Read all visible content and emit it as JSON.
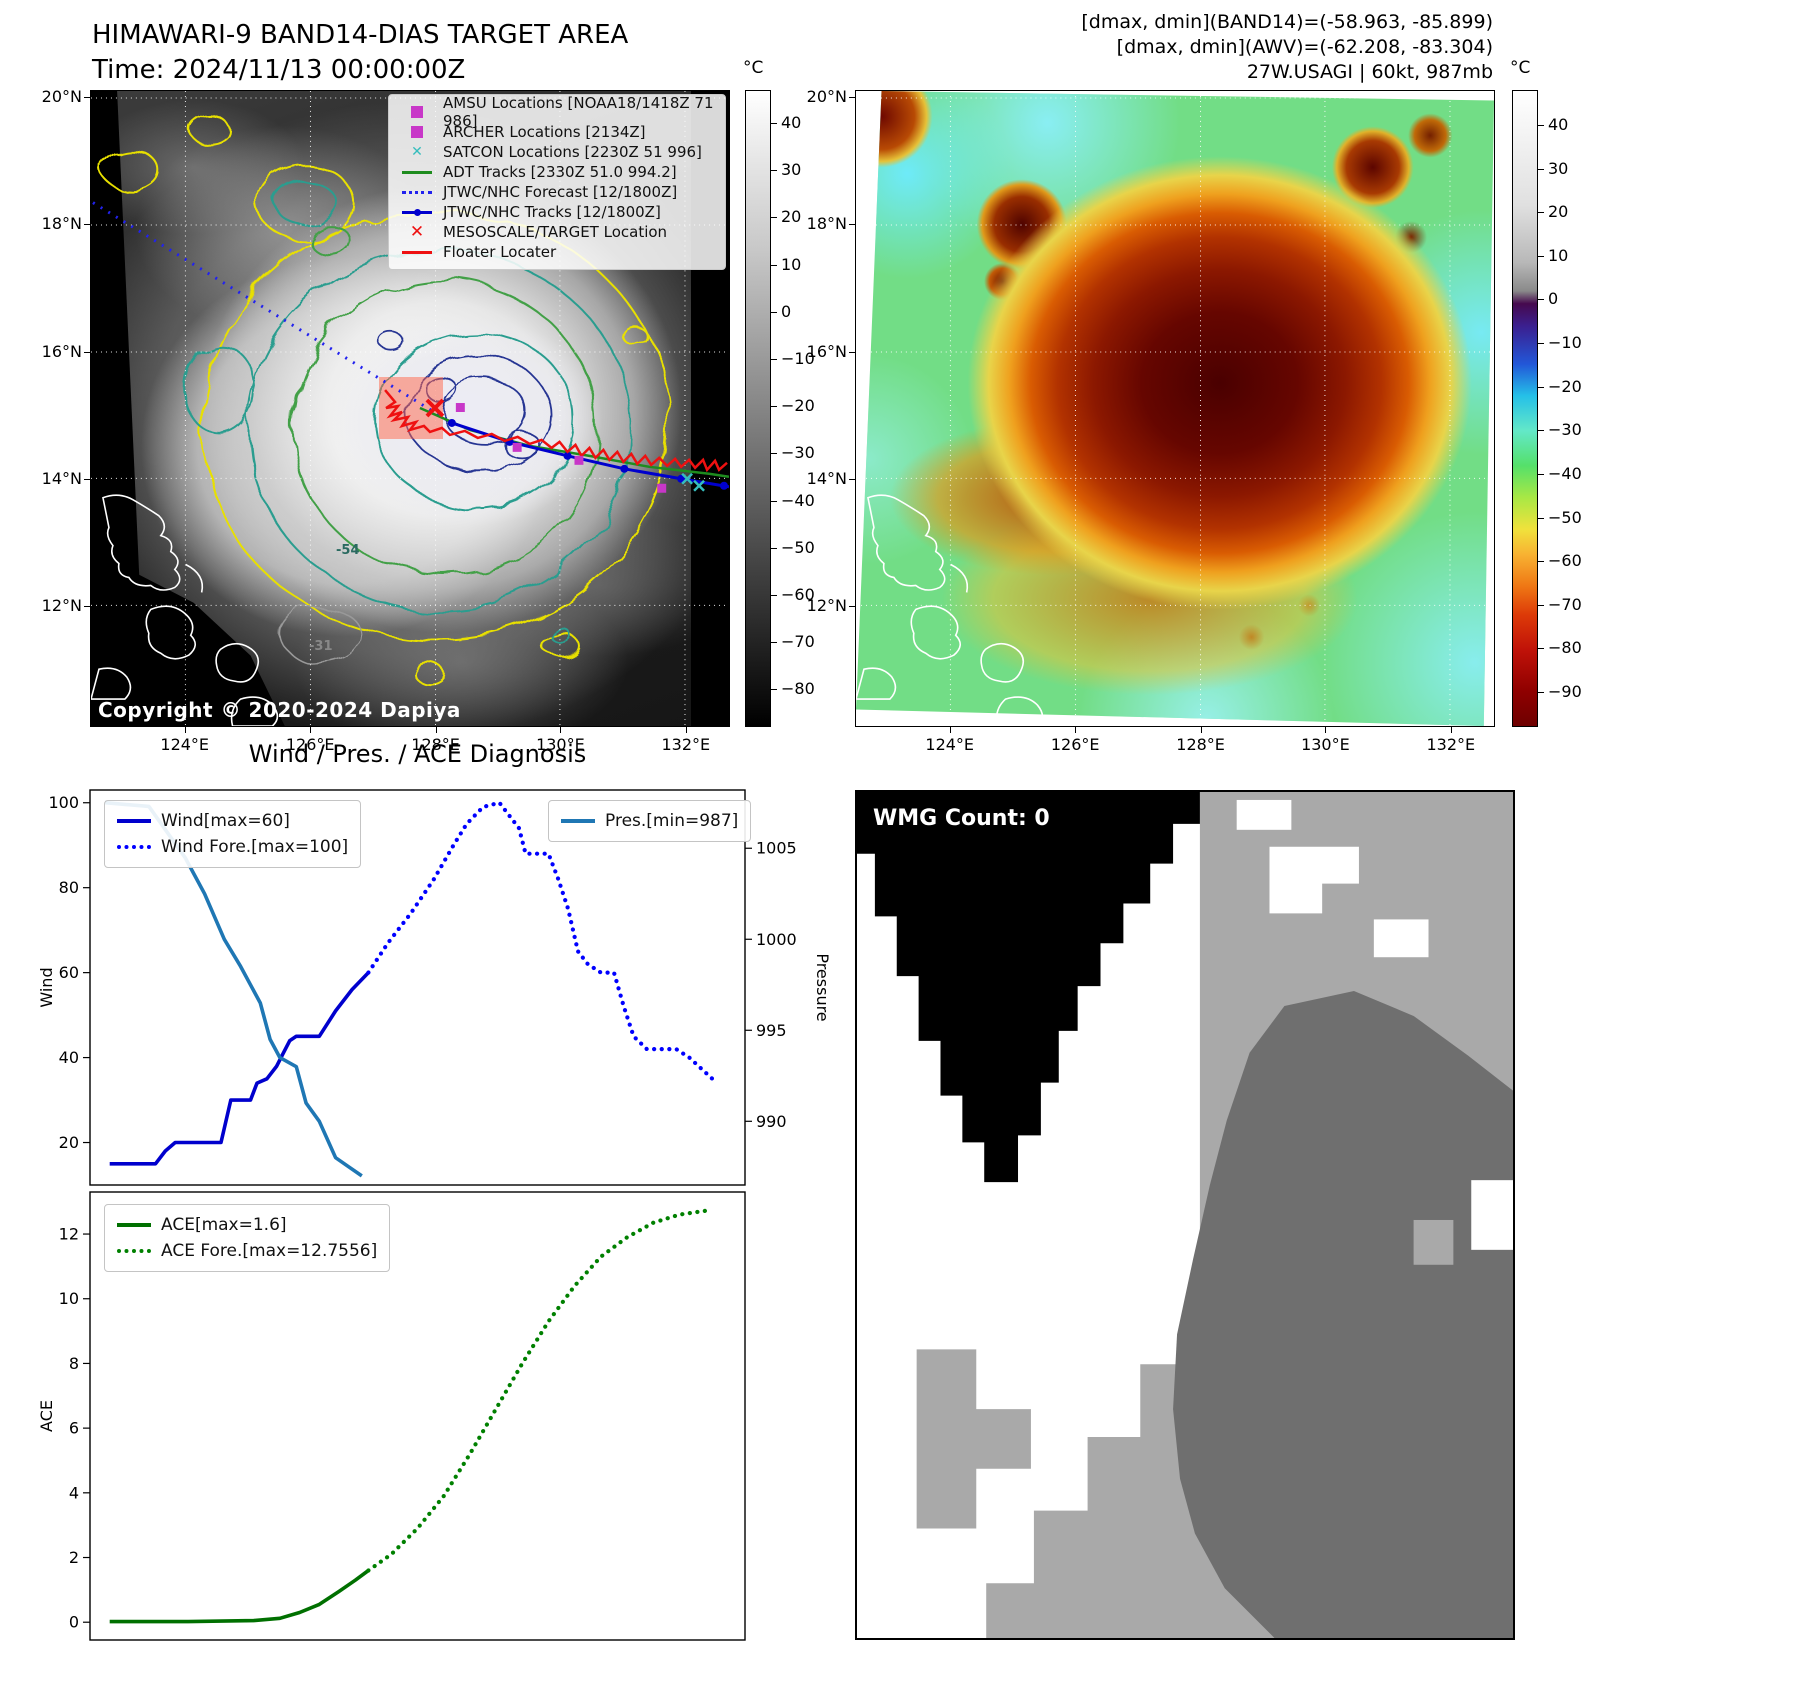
{
  "panel_band14": {
    "title_line1": "HIMAWARI-9 BAND14-DIAS TARGET AREA",
    "title_line2": "Time: 2024/11/13 00:00:00Z",
    "copyright": "Copyright © 2020-2024 Dapiya",
    "colorbar": {
      "unit": "°C",
      "ticks": [
        40,
        30,
        20,
        10,
        0,
        -10,
        -20,
        -30,
        -40,
        -50,
        -60,
        -70,
        -80
      ]
    },
    "x_ticks": [
      "124°E",
      "126°E",
      "128°E",
      "130°E",
      "132°E"
    ],
    "y_ticks": [
      "20°N",
      "18°N",
      "16°N",
      "14°N",
      "12°N"
    ],
    "contour_labels": [
      "-54",
      "-31"
    ],
    "legend": [
      {
        "label": "AMSU Locations [NOAA18/1418Z 71 986]",
        "marker": "square",
        "color": "#c837c8"
      },
      {
        "label": "ARCHER Locations [2134Z]",
        "marker": "square",
        "color": "#c837c8"
      },
      {
        "label": "SATCON Locations [2230Z 51 996]",
        "marker": "x",
        "color": "#35bdbd"
      },
      {
        "label": "ADT Tracks [2330Z 51.0 994.2]",
        "marker": "line",
        "color": "#1e8c1e"
      },
      {
        "label": "JTWC/NHC Forecast [12/1800Z]",
        "marker": "dotted",
        "color": "#2222ee"
      },
      {
        "label": "JTWC/NHC Tracks [12/1800Z]",
        "marker": "line-dot",
        "color": "#0000cd"
      },
      {
        "label": "MESOSCALE/TARGET Location",
        "marker": "x-bold",
        "color": "#ee1111"
      },
      {
        "label": "Floater Locater",
        "marker": "line",
        "color": "#ee1111"
      }
    ]
  },
  "panel_awv": {
    "header_line1": "[dmax, dmin](BAND14)=(-58.963, -85.899)",
    "header_line2": "[dmax, dmin](AWV)=(-62.208, -83.304)",
    "header_line3": "27W.USAGI | 60kt, 987mb",
    "colorbar": {
      "unit": "°C",
      "ticks": [
        40,
        30,
        20,
        10,
        0,
        -10,
        -20,
        -30,
        -40,
        -50,
        -60,
        -70,
        -80,
        -90
      ]
    },
    "x_ticks": [
      "124°E",
      "126°E",
      "128°E",
      "130°E",
      "132°E"
    ],
    "y_ticks": [
      "20°N",
      "18°N",
      "16°N",
      "14°N",
      "12°N"
    ]
  },
  "diagnosis_title": "Wind / Pres. / ACE Diagnosis",
  "wmg": {
    "label": "WMG Count: 0"
  },
  "chart_data": [
    {
      "type": "line",
      "title": "Wind / Pres. / ACE Diagnosis",
      "ylabel_left": "Wind",
      "ylabel_right": "Pressure",
      "ylim_left": [
        10,
        103
      ],
      "ylim_right": [
        986.5,
        1008.2
      ],
      "yticks_left": [
        20,
        40,
        60,
        80,
        100
      ],
      "yticks_right": [
        990,
        995,
        1000,
        1005
      ],
      "xlim": [
        0,
        1
      ],
      "grid": false,
      "series": [
        {
          "name": "Wind[max=60]",
          "axis": "left",
          "style": "solid",
          "color": "#0000cd",
          "x": [
            0.03,
            0.1,
            0.115,
            0.13,
            0.2,
            0.215,
            0.245,
            0.255,
            0.27,
            0.285,
            0.295,
            0.305,
            0.315,
            0.35,
            0.375,
            0.4,
            0.425
          ],
          "y": [
            15,
            15,
            18,
            20,
            20,
            30,
            30,
            34,
            35,
            38,
            41,
            44,
            45,
            45,
            51,
            56,
            60
          ]
        },
        {
          "name": "Wind Fore.[max=100]",
          "axis": "left",
          "style": "dotted",
          "color": "#0000ff",
          "x": [
            0.425,
            0.455,
            0.49,
            0.525,
            0.555,
            0.575,
            0.6,
            0.625,
            0.64,
            0.655,
            0.665,
            0.7,
            0.715,
            0.73,
            0.745,
            0.76,
            0.78,
            0.8,
            0.815,
            0.83,
            0.85,
            0.895,
            0.915,
            0.95
          ],
          "y": [
            60,
            67,
            74,
            82,
            90,
            95,
            99,
            100,
            97,
            94,
            88,
            88,
            82,
            75,
            65,
            62,
            60,
            60,
            52,
            45,
            42,
            42,
            40,
            35
          ]
        },
        {
          "name": "Pres.[min=987]",
          "axis": "right",
          "style": "solid",
          "color": "#1f77b4",
          "x": [
            0.023,
            0.09,
            0.145,
            0.175,
            0.205,
            0.23,
            0.245,
            0.26,
            0.275,
            0.29,
            0.315,
            0.33,
            0.35,
            0.375,
            0.395,
            0.415
          ],
          "y": [
            1007.5,
            1007.3,
            1004.5,
            1002.5,
            1000,
            998.5,
            997.5,
            996.5,
            994.5,
            993.5,
            993,
            991,
            990,
            988,
            987.5,
            987
          ]
        }
      ]
    },
    {
      "type": "line",
      "ylabel_left": "ACE",
      "ylim_left": [
        -0.55,
        13.3
      ],
      "yticks_left": [
        0,
        2,
        4,
        6,
        8,
        10,
        12
      ],
      "xlim": [
        0,
        1
      ],
      "grid": false,
      "series": [
        {
          "name": "ACE[max=1.6]",
          "axis": "left",
          "style": "solid",
          "color": "#007000",
          "x": [
            0.03,
            0.15,
            0.25,
            0.29,
            0.32,
            0.35,
            0.38,
            0.405,
            0.425
          ],
          "y": [
            0.02,
            0.02,
            0.05,
            0.12,
            0.3,
            0.55,
            0.95,
            1.3,
            1.6
          ]
        },
        {
          "name": "ACE Fore.[max=12.7556]",
          "axis": "left",
          "style": "dotted",
          "color": "#008000",
          "x": [
            0.425,
            0.46,
            0.5,
            0.54,
            0.58,
            0.62,
            0.66,
            0.7,
            0.74,
            0.78,
            0.82,
            0.86,
            0.9,
            0.95
          ],
          "y": [
            1.6,
            2.1,
            2.9,
            3.9,
            5.2,
            6.6,
            8.0,
            9.3,
            10.4,
            11.3,
            11.9,
            12.35,
            12.6,
            12.75
          ]
        }
      ]
    }
  ]
}
